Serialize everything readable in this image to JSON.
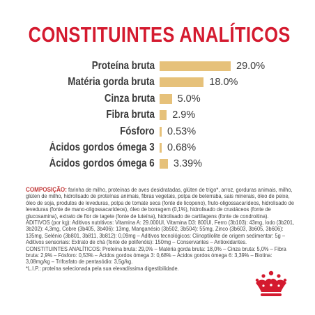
{
  "title": "CONSTITUINTES ANALÍTICOS",
  "colors": {
    "title_red": "#d41a2f",
    "bar_gold": "#e6c17a",
    "logo_red": "#d41a2f"
  },
  "nutrients": [
    {
      "label": "Proteína bruta",
      "value_text": "29.0%",
      "value": 29.0
    },
    {
      "label": "Matéria gorda bruta",
      "value_text": "18.0%",
      "value": 18.0
    },
    {
      "label": "Cinza bruta",
      "value_text": "5.0%",
      "value": 5.0
    },
    {
      "label": "Fibra bruta",
      "value_text": "2.9%",
      "value": 2.9
    },
    {
      "label": "Fósforo",
      "value_text": "0.53%",
      "value": 0.53
    },
    {
      "label": "Ácidos gordos ómega 3",
      "value_text": "0.68%",
      "value": 0.68
    },
    {
      "label": "Ácidos gordos ómega 6",
      "value_text": "3.39%",
      "value": 3.39
    }
  ],
  "composition": {
    "heading": "COMPOSIÇÃO:",
    "intro": "farinha de milho, proteínas de aves desidratadas, glúten de trigo*, arroz, gorduras animais, milho, glúten de milho, hidrolisado de proteínas animais, fibras vegetais, polpa de beterraba, sais minerais, óleo de peixe, óleo de soja, produtos de leveduras, polpa de tomate seca (fonte de licopeno), fruto-oligossacarídeos, hidrolisado de leveduras (fonte de mano-oligossacarídeos), óleo de borragem (0,1%), hidrolisado de crustáceos (fonte de glucosamina), extrato de flor de tagete (fonte de luteína), hidrolisado de cartilagens (fonte de condroitina).",
    "additives": "ADITIVOS (por kg): Aditivos nutritivos: Vitamina A: 29.000UI, Vitamina D3: 800UI, Ferro (3b103): 43mg, Iodo (3b201, 3b202): 4,3mg, Cobre (3b405, 3b406): 13mg, Manganésio (3b502, 3b504): 55mg, Zinco (3b603, 3b605, 3b606): 135mg, Selénio (3b801, 3b811, 3b812): 0,09mg – Aditivos tecnológicos: Clinoptilolite de origem sedimentar: 5g – Aditivos sensoriais: Extrato de chá (fonte de polifenóis): 150mg – Conservantes – Antioxidantes.",
    "analytical": "CONSTITUINTES ANALÍTICOS: Proteína bruta: 29,0% – Matéria gorda bruta: 18,0% – Cinza bruta: 5,0% – Fibra bruta: 2,9% – Fósforo: 0,53% – Ácidos gordos ómega 3: 0,68% – Ácidos gordos ómega 6: 3,39% – Biotina: 3,08mg/kg – Trifosfato de pentasódio: 3,5g/kg.",
    "footnote": "*L.I.P.: proteína selecionada pela sua elevadíssima digestibilidade."
  },
  "logo": {
    "name": "royal-canin-crown-logo"
  }
}
